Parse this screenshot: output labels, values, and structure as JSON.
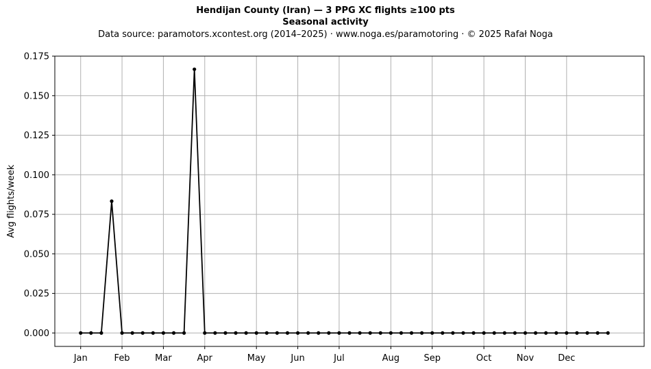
{
  "chart_data": {
    "type": "line",
    "title": "Hendijan County (Iran)  —  3 PPG XC flights ≥100 pts",
    "subtitle": "Seasonal activity",
    "source_line": "Data source: paramotors.xcontest.org (2014–2025)  ·  www.noga.es/paramotoring  ·  © 2025 Rafał Noga",
    "xlabel": "",
    "ylabel": "Avg flights/week",
    "x_weeks": [
      1,
      2,
      3,
      4,
      5,
      6,
      7,
      8,
      9,
      10,
      11,
      12,
      13,
      14,
      15,
      16,
      17,
      18,
      19,
      20,
      21,
      22,
      23,
      24,
      25,
      26,
      27,
      28,
      29,
      30,
      31,
      32,
      33,
      34,
      35,
      36,
      37,
      38,
      39,
      40,
      41,
      42,
      43,
      44,
      45,
      46,
      47,
      48,
      49,
      50,
      51,
      52
    ],
    "values": [
      0,
      0,
      0,
      0.0833,
      0,
      0,
      0,
      0,
      0,
      0,
      0,
      0.1667,
      0,
      0,
      0,
      0,
      0,
      0,
      0,
      0,
      0,
      0,
      0,
      0,
      0,
      0,
      0,
      0,
      0,
      0,
      0,
      0,
      0,
      0,
      0,
      0,
      0,
      0,
      0,
      0,
      0,
      0,
      0,
      0,
      0,
      0,
      0,
      0,
      0,
      0,
      0,
      0
    ],
    "xlim": [
      -1.5,
      55.5
    ],
    "ylim": [
      -0.0085,
      0.175
    ],
    "xticks": [
      {
        "x": 1,
        "label": "Jan"
      },
      {
        "x": 5,
        "label": "Feb"
      },
      {
        "x": 9,
        "label": "Mar"
      },
      {
        "x": 13,
        "label": "Apr"
      },
      {
        "x": 18,
        "label": "May"
      },
      {
        "x": 22,
        "label": "Jun"
      },
      {
        "x": 26,
        "label": "Jul"
      },
      {
        "x": 31,
        "label": "Aug"
      },
      {
        "x": 35,
        "label": "Sep"
      },
      {
        "x": 40,
        "label": "Oct"
      },
      {
        "x": 44,
        "label": "Nov"
      },
      {
        "x": 48,
        "label": "Dec"
      }
    ],
    "yticks": [
      {
        "y": 0.0,
        "label": "0.000"
      },
      {
        "y": 0.025,
        "label": "0.025"
      },
      {
        "y": 0.05,
        "label": "0.050"
      },
      {
        "y": 0.075,
        "label": "0.075"
      },
      {
        "y": 0.1,
        "label": "0.100"
      },
      {
        "y": 0.125,
        "label": "0.125"
      },
      {
        "y": 0.15,
        "label": "0.150"
      },
      {
        "y": 0.175,
        "label": "0.175"
      }
    ],
    "grid": true,
    "line_color": "#000000",
    "grid_color": "#b0b0b0"
  }
}
